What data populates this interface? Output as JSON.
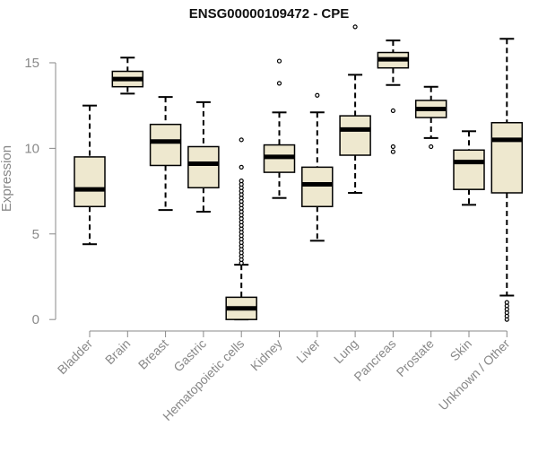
{
  "chart_data": {
    "type": "boxplot",
    "title": "ENSG00000109472 - CPE",
    "xlabel": "",
    "ylabel": "Expression",
    "ylim": [
      -0.2,
      17.2
    ],
    "yticks": [
      0,
      5,
      10,
      15
    ],
    "grid": false,
    "legend": "none",
    "categories": [
      "Bladder",
      "Brain",
      "Breast",
      "Gastric",
      "Hematopoietic cells",
      "Kidney",
      "Liver",
      "Lung",
      "Pancreas",
      "Prostate",
      "Skin",
      "Unknown / Other"
    ],
    "series": [
      {
        "name": "Bladder",
        "whisker_low": 4.4,
        "q1": 6.6,
        "median": 7.6,
        "q3": 9.5,
        "whisker_high": 12.5,
        "outliers": []
      },
      {
        "name": "Brain",
        "whisker_low": 13.2,
        "q1": 13.6,
        "median": 14.05,
        "q3": 14.5,
        "whisker_high": 15.3,
        "outliers": []
      },
      {
        "name": "Breast",
        "whisker_low": 6.4,
        "q1": 9.0,
        "median": 10.4,
        "q3": 11.4,
        "whisker_high": 13.0,
        "outliers": []
      },
      {
        "name": "Gastric",
        "whisker_low": 6.3,
        "q1": 7.7,
        "median": 9.1,
        "q3": 10.1,
        "whisker_high": 12.7,
        "outliers": []
      },
      {
        "name": "Hematopoietic cells",
        "whisker_low": 0.0,
        "q1": 0.0,
        "median": 0.65,
        "q3": 1.3,
        "whisker_high": 3.2,
        "outliers": [
          3.3,
          3.5,
          3.7,
          3.9,
          4.1,
          4.3,
          4.5,
          4.7,
          4.9,
          5.1,
          5.3,
          5.5,
          5.7,
          5.9,
          6.1,
          6.3,
          6.5,
          6.7,
          6.9,
          7.1,
          7.3,
          7.5,
          7.7,
          7.9,
          8.1,
          8.9,
          10.5
        ]
      },
      {
        "name": "Kidney",
        "whisker_low": 7.1,
        "q1": 8.6,
        "median": 9.5,
        "q3": 10.2,
        "whisker_high": 12.1,
        "outliers": [
          13.8,
          15.1
        ]
      },
      {
        "name": "Liver",
        "whisker_low": 4.6,
        "q1": 6.6,
        "median": 7.9,
        "q3": 8.9,
        "whisker_high": 12.1,
        "outliers": [
          13.1
        ]
      },
      {
        "name": "Lung",
        "whisker_low": 7.4,
        "q1": 9.6,
        "median": 11.1,
        "q3": 11.9,
        "whisker_high": 14.3,
        "outliers": [
          17.1
        ]
      },
      {
        "name": "Pancreas",
        "whisker_low": 13.7,
        "q1": 14.7,
        "median": 15.2,
        "q3": 15.6,
        "whisker_high": 16.3,
        "outliers": [
          9.8,
          10.1,
          12.2
        ]
      },
      {
        "name": "Prostate",
        "whisker_low": 10.6,
        "q1": 11.8,
        "median": 12.3,
        "q3": 12.8,
        "whisker_high": 13.6,
        "outliers": [
          10.1
        ]
      },
      {
        "name": "Skin",
        "whisker_low": 6.7,
        "q1": 7.6,
        "median": 9.2,
        "q3": 9.9,
        "whisker_high": 11.0,
        "outliers": []
      },
      {
        "name": "Unknown / Other",
        "whisker_low": 1.4,
        "q1": 7.4,
        "median": 10.5,
        "q3": 11.5,
        "whisker_high": 16.4,
        "outliers": [
          0.0,
          0.2,
          0.4,
          0.6,
          0.8,
          1.0
        ]
      }
    ]
  },
  "colors": {
    "box_fill": "#EEE8CF",
    "line": "#000000",
    "axis": "#888888",
    "tick_label": "#888888",
    "title": "#111111"
  }
}
